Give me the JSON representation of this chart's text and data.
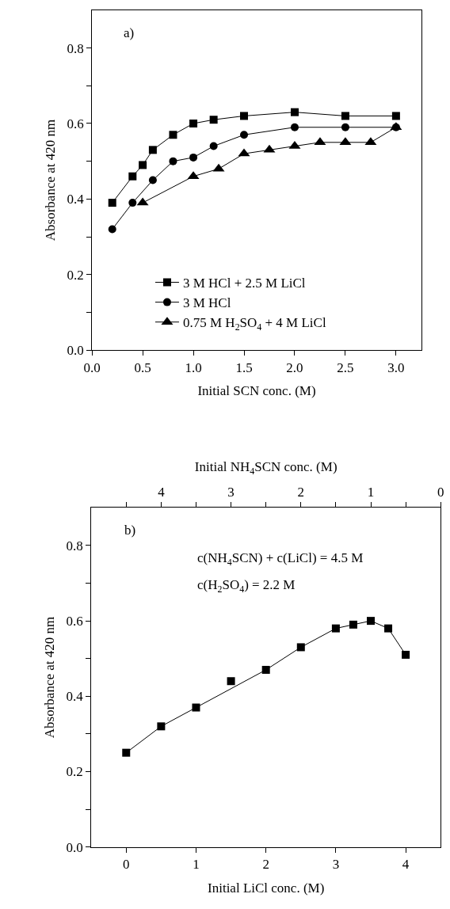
{
  "chart_data": [
    {
      "type": "line",
      "xlabel": "Initial SCN conc. (M)",
      "ylabel": "Absorbance at 420 nm",
      "xlim": [
        0,
        3.25
      ],
      "ylim": [
        0,
        0.9
      ],
      "xticks": [
        {
          "value": 0,
          "label": "0.0"
        },
        0.5,
        {
          "value": 1,
          "label": "1.0"
        },
        1.5,
        {
          "value": 2,
          "label": "2.0"
        },
        2.5,
        {
          "value": 3,
          "label": "3.0"
        }
      ],
      "yticks": [
        {
          "value": 0,
          "label": "0.0"
        },
        {
          "value": 0.1,
          "label": null
        },
        0.2,
        {
          "value": 0.3,
          "label": null
        },
        0.4,
        {
          "value": 0.5,
          "label": null
        },
        0.6,
        {
          "value": 0.7,
          "label": null
        },
        0.8
      ],
      "legend": "bottom",
      "line_style": "solid",
      "annotations": [
        "a)"
      ],
      "series": [
        {
          "name": "3 M HCl + 2.5 M LiCl",
          "color": "#000000",
          "marker": "square",
          "x": [
            0.2,
            0.4,
            0.5,
            0.6,
            0.8,
            1.0,
            1.2,
            1.5,
            2.0,
            2.5,
            3.0
          ],
          "values": [
            0.39,
            0.46,
            0.49,
            0.53,
            0.57,
            0.6,
            0.61,
            0.62,
            0.63,
            0.62,
            0.62
          ]
        },
        {
          "name": "3 M HCl",
          "color": "#000000",
          "marker": "circle",
          "x": [
            0.2,
            0.4,
            0.6,
            0.8,
            1.0,
            1.2,
            1.5,
            2.0,
            2.5,
            3.0
          ],
          "values": [
            0.32,
            0.39,
            0.45,
            0.5,
            0.51,
            0.54,
            0.57,
            0.59,
            0.59,
            0.59
          ]
        },
        {
          "name": "0.75 M H$_{2}$SO$_{4}$ + 4 M LiCl",
          "color": "#000000",
          "marker": "triangle",
          "x": [
            0.5,
            1.0,
            1.25,
            1.5,
            1.75,
            2.0,
            2.25,
            2.5,
            2.75,
            3.0
          ],
          "values": [
            0.39,
            0.46,
            0.48,
            0.52,
            0.53,
            0.54,
            0.55,
            0.55,
            0.55,
            0.59
          ]
        }
      ]
    },
    {
      "type": "line",
      "xlabel": "Initial LiCl conc. (M)",
      "ylabel": "Absorbance at 420 nm",
      "x2label": "Initial NH$_{4}$SCN conc. (M)",
      "xlim": [
        -0.5,
        4.5
      ],
      "ylim": [
        0,
        0.9
      ],
      "x2lim": [
        5,
        0
      ],
      "xticks": [
        0,
        1,
        2,
        3,
        4
      ],
      "x2ticks": [
        4,
        3,
        2,
        1,
        0,
        {
          "value": 4.5,
          "label": null
        },
        {
          "value": 3.5,
          "label": null
        },
        {
          "value": 2.5,
          "label": null
        },
        {
          "value": 1.5,
          "label": null
        },
        {
          "value": 0.5,
          "label": null
        }
      ],
      "yticks": [
        {
          "value": 0,
          "label": "0.0"
        },
        {
          "value": 0.1,
          "label": null
        },
        0.2,
        {
          "value": 0.3,
          "label": null
        },
        0.4,
        {
          "value": 0.5,
          "label": null
        },
        0.6,
        {
          "value": 0.7,
          "label": null
        },
        0.8
      ],
      "legend": false,
      "annotations": [
        "b)",
        "c(NH$_{4}$SCN) + c(LiCl) = 4.5 M",
        "c(H$_{2}$SO$_{4}$) = 2.2 M"
      ],
      "series": [
        {
          "type": "scatter",
          "color": "#000000",
          "marker": "square",
          "x": [
            0,
            0.5,
            1,
            1.5,
            2,
            2.5,
            3,
            3.25,
            3.5,
            3.75,
            4
          ],
          "values": [
            0.25,
            0.32,
            0.37,
            0.44,
            0.47,
            0.53,
            0.58,
            0.59,
            0.6,
            0.58,
            0.51
          ]
        },
        {
          "type": "line",
          "color": "#000000",
          "marker": "none",
          "line_style": "solid",
          "x": [
            0,
            0.5,
            1,
            2,
            2.5,
            3,
            3.25,
            3.5,
            3.75,
            4
          ],
          "values": [
            0.25,
            0.32,
            0.37,
            0.47,
            0.53,
            0.58,
            0.59,
            0.6,
            0.58,
            0.51
          ]
        }
      ]
    }
  ]
}
